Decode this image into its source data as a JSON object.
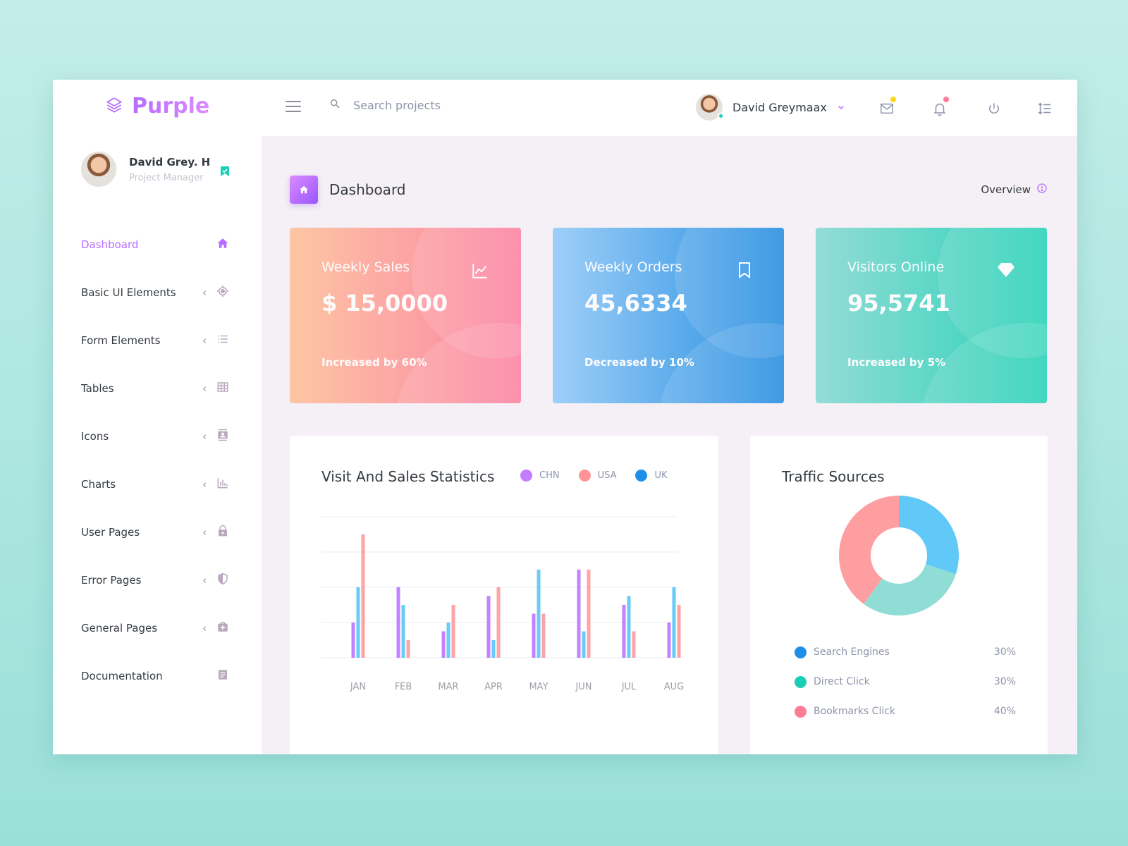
{
  "app": {
    "brand": "Purple"
  },
  "topbar": {
    "search_placeholder": "Search projects",
    "user_name": "David Greymaax",
    "mail_badge_color": "#fed713",
    "bell_badge_color": "#fe7c96"
  },
  "sidebar": {
    "profile": {
      "name": "David Grey. H",
      "role": "Project Manager"
    },
    "items": [
      {
        "label": "Dashboard",
        "icon": "home-icon",
        "active": true
      },
      {
        "label": "Basic UI Elements",
        "icon": "crosshairs-icon"
      },
      {
        "label": "Form Elements",
        "icon": "list-icon"
      },
      {
        "label": "Tables",
        "icon": "table-icon"
      },
      {
        "label": "Icons",
        "icon": "contacts-icon"
      },
      {
        "label": "Charts",
        "icon": "chart-bar-icon"
      },
      {
        "label": "User Pages",
        "icon": "lock-icon"
      },
      {
        "label": "Error Pages",
        "icon": "security-icon"
      },
      {
        "label": "General Pages",
        "icon": "medical-bag-icon"
      },
      {
        "label": "Documentation",
        "icon": "file-document-icon"
      }
    ]
  },
  "page": {
    "title": "Dashboard",
    "overview_label": "Overview"
  },
  "cards": [
    {
      "title": "Weekly Sales",
      "value": "$ 15,0000",
      "sub": "Increased by 60%",
      "icon": "chart-line-icon"
    },
    {
      "title": "Weekly Orders",
      "value": "45,6334",
      "sub": "Decreased by 10%",
      "icon": "bookmark-icon"
    },
    {
      "title": "Visitors Online",
      "value": "95,5741",
      "sub": "Increased by 5%",
      "icon": "diamond-icon"
    }
  ],
  "colors": {
    "accent": "#b66dff",
    "chn": "#b66dff",
    "usa": "#fe9496",
    "uk": "#4fc3f7",
    "search_engines": "#1e8fe8",
    "direct_click": "#1bcfb4",
    "bookmarks_click": "#fe7c96"
  },
  "chart_data": [
    {
      "type": "bar",
      "title": "Visit And Sales Statistics",
      "categories": [
        "JAN",
        "FEB",
        "MAR",
        "APR",
        "MAY",
        "JUN",
        "JUL",
        "AUG"
      ],
      "series": [
        {
          "name": "CHN",
          "color": "#b66dff",
          "values": [
            20,
            40,
            15,
            35,
            25,
            50,
            30,
            20
          ]
        },
        {
          "name": "UK",
          "color": "#4fc3f7",
          "values": [
            40,
            30,
            20,
            10,
            50,
            15,
            35,
            40
          ]
        },
        {
          "name": "USA",
          "color": "#fe9496",
          "values": [
            70,
            10,
            30,
            40,
            25,
            50,
            15,
            30
          ]
        }
      ],
      "ylim": [
        0,
        80
      ],
      "grid": true,
      "legend": "top-right"
    },
    {
      "type": "pie",
      "title": "Traffic Sources",
      "labels": [
        "Search Engines",
        "Direct Click",
        "Bookmarks Click"
      ],
      "values": [
        30,
        30,
        40
      ],
      "display_values": [
        "30%",
        "30%",
        "40%"
      ],
      "colors": [
        "#4fc3f7",
        "#84d9d2",
        "#fe9496"
      ],
      "legend_colors": [
        "#1e8fe8",
        "#1bcfb4",
        "#fe7c96"
      ],
      "donut": true
    }
  ]
}
